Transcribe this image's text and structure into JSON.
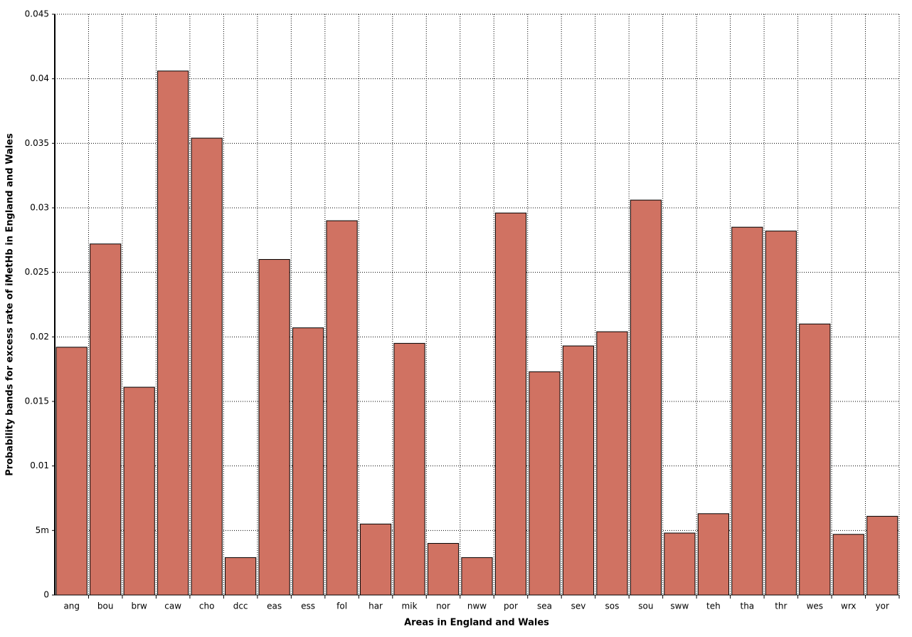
{
  "chart_data": {
    "type": "bar",
    "x_label": "Areas in England and Wales",
    "y_label": "Probability bands for excess rate of iMetHb in England and Wales",
    "categories": [
      "ang",
      "bou",
      "brw",
      "caw",
      "cho",
      "dcc",
      "eas",
      "ess",
      "fol",
      "har",
      "mik",
      "nor",
      "nww",
      "por",
      "sea",
      "sev",
      "sos",
      "sou",
      "sww",
      "teh",
      "tha",
      "thr",
      "wes",
      "wrx",
      "yor"
    ],
    "values": [
      0.0192,
      0.0272,
      0.0161,
      0.0406,
      0.0354,
      0.0029,
      0.026,
      0.0207,
      0.029,
      0.0055,
      0.0195,
      0.004,
      0.0029,
      0.0296,
      0.0173,
      0.0193,
      0.0204,
      0.0306,
      0.0048,
      0.0063,
      0.0285,
      0.0282,
      0.021,
      0.0047,
      0.0061
    ],
    "color": "#d07262",
    "ylim": [
      0,
      0.045
    ],
    "yticks": [
      0,
      {
        "value": 0.005,
        "label": "5m"
      },
      0.01,
      0.015,
      0.02,
      0.025,
      0.03,
      0.035,
      0.04,
      0.045
    ],
    "grid": true
  }
}
